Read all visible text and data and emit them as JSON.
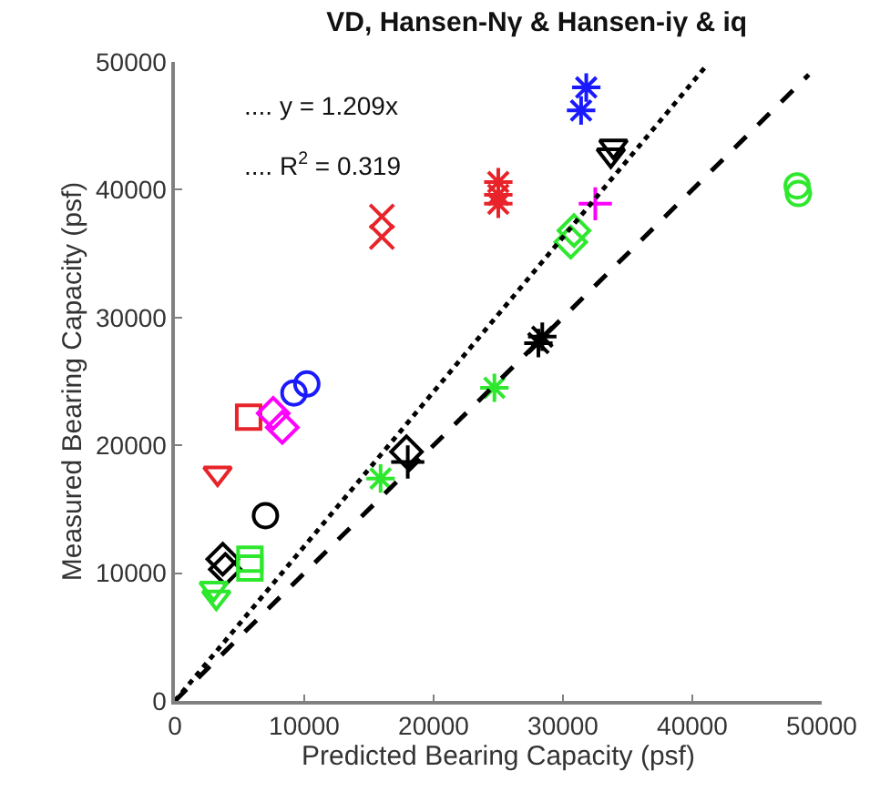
{
  "chart_data": {
    "type": "scatter",
    "title": "VD, Hansen-Nγ & Hansen-iγ & iq",
    "xlabel": "Predicted Bearing Capacity (psf)",
    "ylabel": "Measured Bearing Capacity (psf)",
    "annotations": [
      ".... y = 1.209x",
      ".... R$^{2}$ = 0.319"
    ],
    "xlim": [
      0,
      50000
    ],
    "ylim": [
      0,
      50000
    ],
    "xticks": [
      0,
      10000,
      20000,
      30000,
      40000,
      50000
    ],
    "yticks": [
      0,
      10000,
      20000,
      30000,
      40000,
      50000
    ],
    "legend": false,
    "series": [
      {
        "color": "#e8232a",
        "marker": "x",
        "x": [
          16000,
          16000
        ],
        "values": [
          37900,
          36300
        ]
      },
      {
        "color": "#e8232a",
        "x": [
          25000,
          25000,
          25000
        ],
        "values": [
          40600,
          39600,
          38900
        ]
      },
      {
        "color": "#1a1aff",
        "x": [
          31800,
          31400
        ],
        "values": [
          48000,
          46200
        ]
      },
      {
        "color": "#000000",
        "marker": "triangle",
        "x": [
          33900,
          33700
        ],
        "values": [
          43400,
          42700
        ]
      },
      {
        "color": "#ff00ff",
        "marker": "cross",
        "x": [
          32500
        ],
        "values": [
          38900
        ]
      },
      {
        "color": "#2ee82e",
        "marker": "diamond",
        "x": [
          30850,
          30600
        ],
        "values": [
          36800,
          35900
        ]
      },
      {
        "color": "#2ee82e",
        "marker": "circle",
        "x": [
          48100,
          48200
        ],
        "values": [
          40300,
          39700
        ]
      },
      {
        "color": "#000000",
        "x": [
          28400,
          28100
        ],
        "values": [
          28500,
          28000
        ]
      },
      {
        "color": "#2ee82e",
        "x": [
          24700,
          15900
        ],
        "values": [
          24500,
          17400
        ]
      },
      {
        "color": "#000000",
        "marker": "diamond",
        "x": [
          17900,
          3700,
          3900
        ],
        "values": [
          19500,
          11100,
          10300
        ]
      },
      {
        "color": "#000000",
        "marker": "cross",
        "x": [
          18000
        ],
        "values": [
          18700
        ]
      },
      {
        "color": "#1a1aff",
        "marker": "circle",
        "x": [
          9200,
          10200
        ],
        "values": [
          24100,
          24800
        ]
      },
      {
        "color": "#e8232a",
        "marker": "square",
        "x": [
          5700
        ],
        "values": [
          22200
        ]
      },
      {
        "color": "#ff00ff",
        "marker": "diamond",
        "x": [
          7600,
          8300
        ],
        "values": [
          22500,
          21400
        ]
      },
      {
        "color": "#e8232a",
        "marker": "triangle",
        "x": [
          3300
        ],
        "values": [
          17800
        ]
      },
      {
        "color": "#000000",
        "marker": "circle",
        "x": [
          7000
        ],
        "values": [
          14500
        ]
      },
      {
        "color": "#2ee82e",
        "marker": "square",
        "x": [
          5800,
          5800
        ],
        "values": [
          11100,
          10400
        ]
      },
      {
        "color": "#2ee82e",
        "marker": "triangle",
        "x": [
          3000,
          3200
        ],
        "values": [
          8800,
          8100
        ]
      },
      {
        "type": "line",
        "color": "#000000",
        "line_style": "dashed",
        "x": [
          0,
          49000
        ],
        "values": [
          0,
          49000
        ]
      },
      {
        "type": "line",
        "color": "#000000",
        "line_style": "dotted",
        "x": [
          0,
          41000
        ],
        "values": [
          0,
          49600
        ]
      }
    ]
  }
}
